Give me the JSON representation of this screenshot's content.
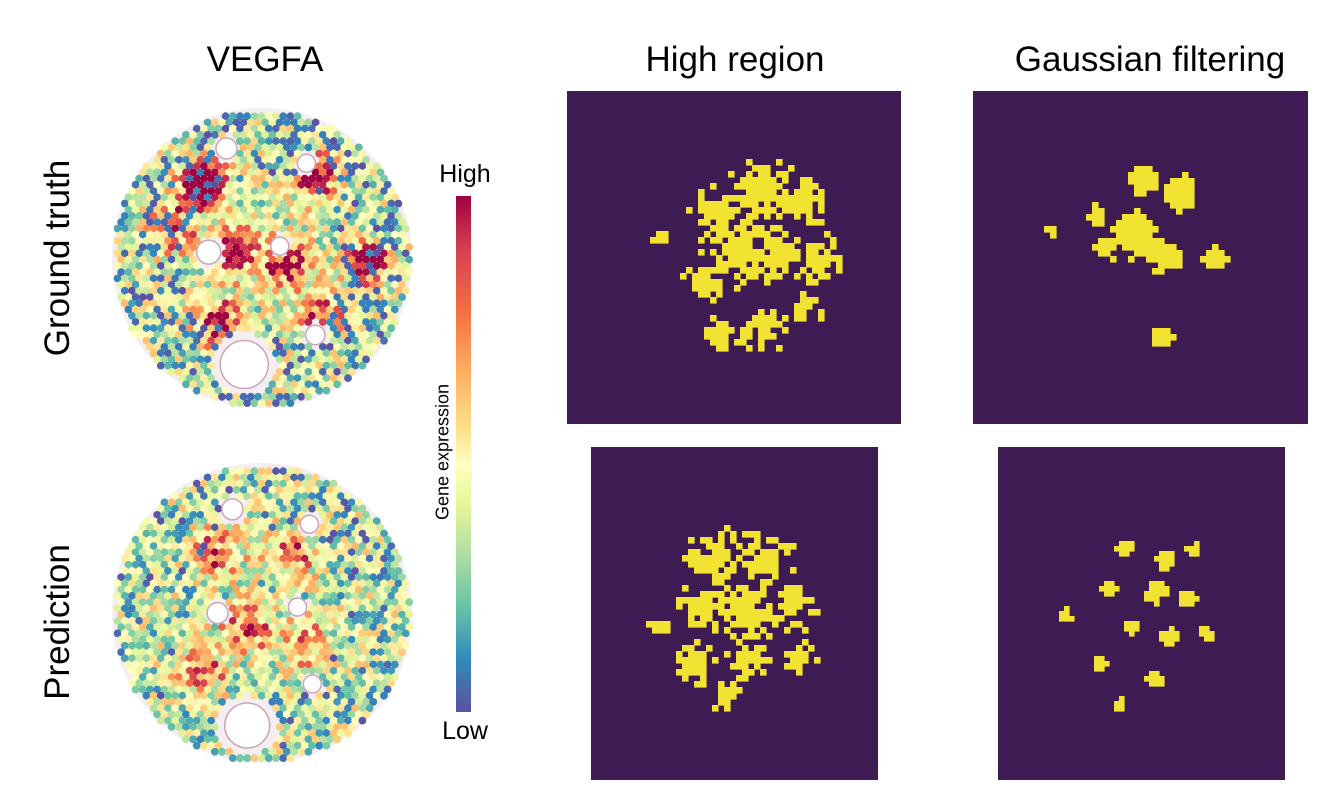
{
  "columns": {
    "gene": "VEGFA",
    "high_region": "High region",
    "gaussian": "Gaussian filtering"
  },
  "rows": {
    "top": "Ground truth",
    "bottom": "Prediction"
  },
  "colorbar": {
    "high": "High",
    "low": "Low",
    "title": "Gene expression"
  },
  "colors": {
    "mask_background": "#3f1b53",
    "mask_foreground": "#f2e333",
    "tissue_low": "#5e4fa2",
    "tissue_high": "#9e0142"
  }
}
